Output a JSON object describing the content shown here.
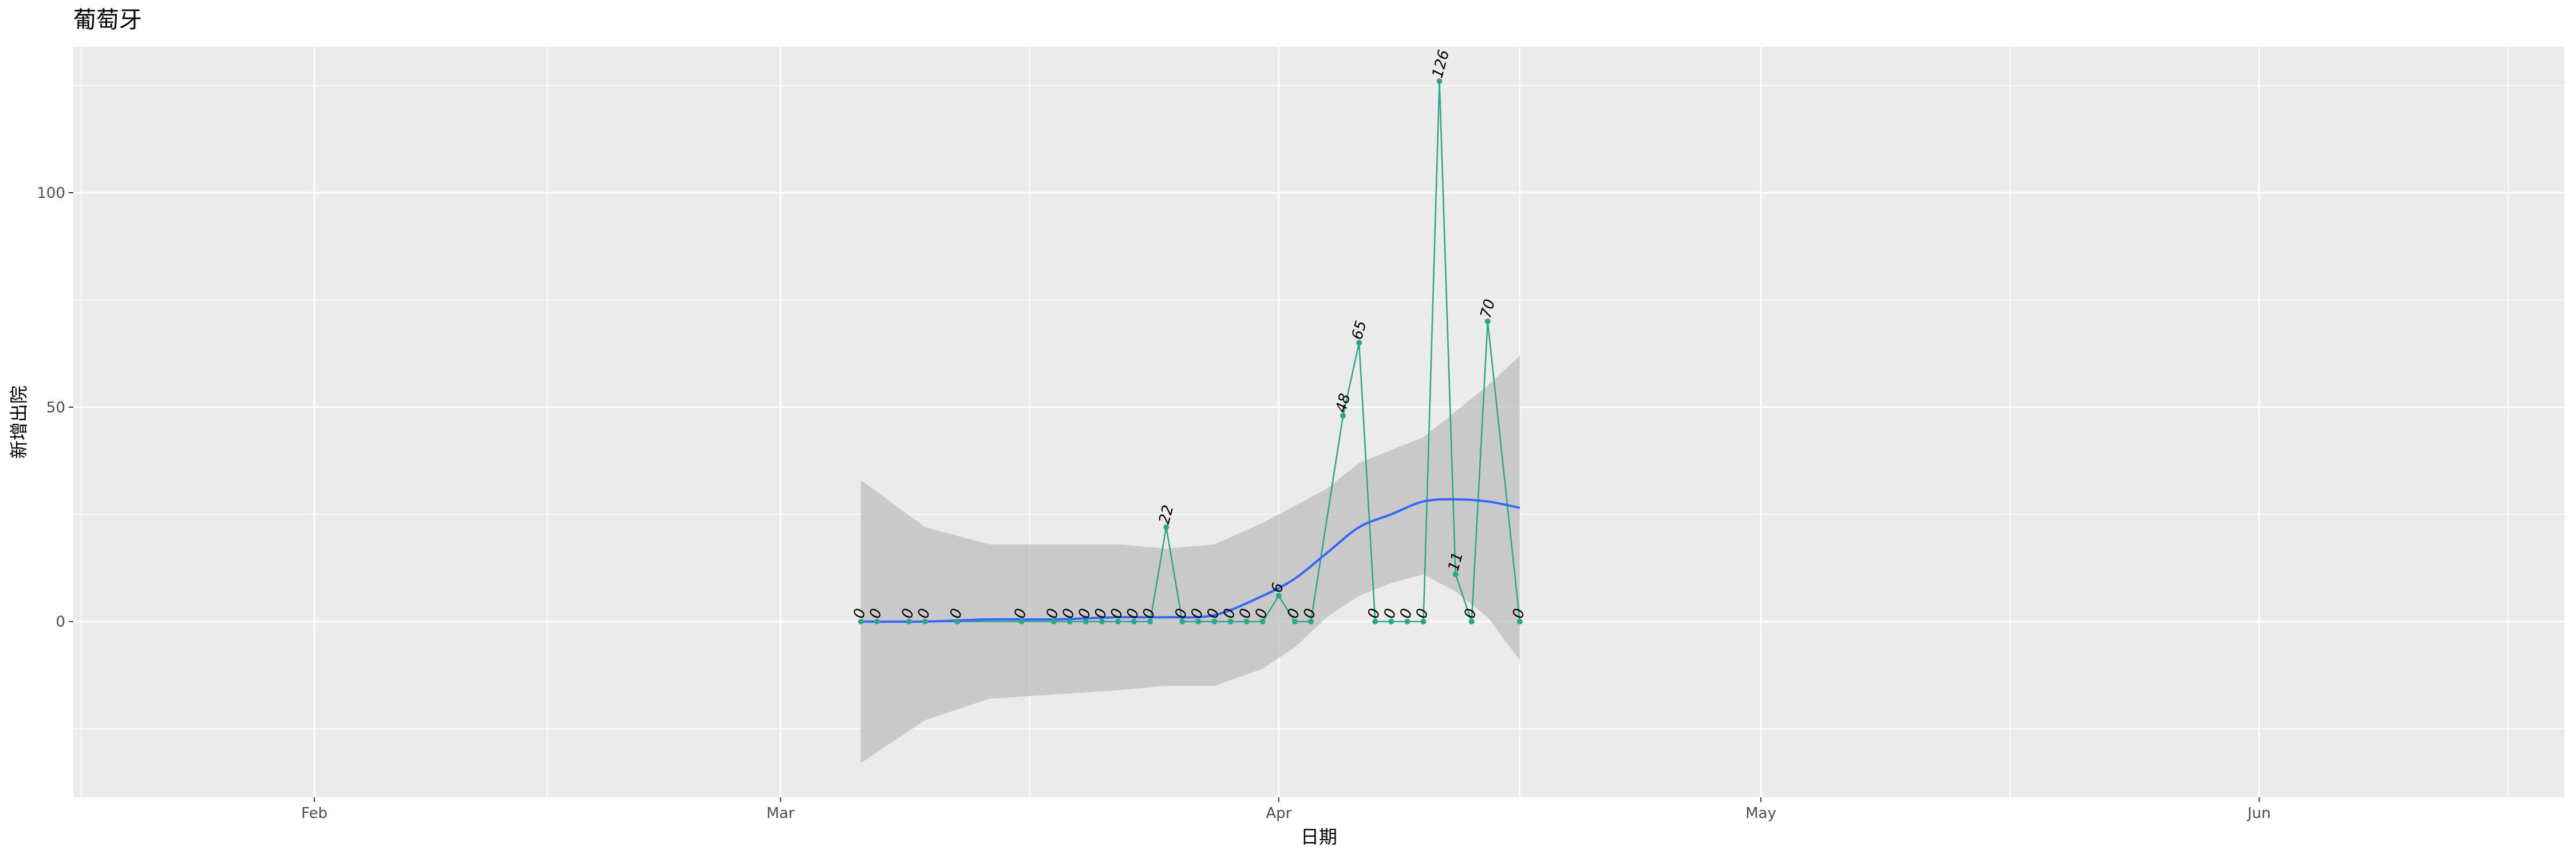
{
  "chart_data": {
    "type": "line",
    "title": "葡萄牙",
    "xlabel": "日期",
    "ylabel": "新增出院",
    "x_ticks": [
      {
        "date": "2020-02-01",
        "label": "Feb"
      },
      {
        "date": "2020-03-01",
        "label": "Mar"
      },
      {
        "date": "2020-04-01",
        "label": "Apr"
      },
      {
        "date": "2020-05-01",
        "label": "May"
      },
      {
        "date": "2020-06-01",
        "label": "Jun"
      }
    ],
    "y_ticks": [
      0,
      50,
      100
    ],
    "xlim": [
      "2020-01-17",
      "2020-06-20"
    ],
    "ylim": [
      -41,
      134
    ],
    "grid": true,
    "series": [
      {
        "color": "#2ca58d",
        "points": [
          {
            "x": "2020-03-06",
            "y": 0,
            "label": "0"
          },
          {
            "x": "2020-03-07",
            "y": 0,
            "label": "0"
          },
          {
            "x": "2020-03-09",
            "y": 0,
            "label": "0"
          },
          {
            "x": "2020-03-10",
            "y": 0,
            "label": "0"
          },
          {
            "x": "2020-03-12",
            "y": 0,
            "label": "0"
          },
          {
            "x": "2020-03-16",
            "y": 0,
            "label": "0"
          },
          {
            "x": "2020-03-18",
            "y": 0,
            "label": "0"
          },
          {
            "x": "2020-03-19",
            "y": 0,
            "label": "0"
          },
          {
            "x": "2020-03-20",
            "y": 0,
            "label": "0"
          },
          {
            "x": "2020-03-21",
            "y": 0,
            "label": "0"
          },
          {
            "x": "2020-03-22",
            "y": 0,
            "label": "0"
          },
          {
            "x": "2020-03-23",
            "y": 0,
            "label": "0"
          },
          {
            "x": "2020-03-24",
            "y": 0,
            "label": "0"
          },
          {
            "x": "2020-03-25",
            "y": 22,
            "label": "22"
          },
          {
            "x": "2020-03-26",
            "y": 0,
            "label": "0"
          },
          {
            "x": "2020-03-27",
            "y": 0,
            "label": "0"
          },
          {
            "x": "2020-03-28",
            "y": 0,
            "label": "0"
          },
          {
            "x": "2020-03-29",
            "y": 0,
            "label": "0"
          },
          {
            "x": "2020-03-30",
            "y": 0,
            "label": "0"
          },
          {
            "x": "2020-03-31",
            "y": 0,
            "label": "0"
          },
          {
            "x": "2020-04-01",
            "y": 6,
            "label": "6"
          },
          {
            "x": "2020-04-02",
            "y": 0,
            "label": "0"
          },
          {
            "x": "2020-04-03",
            "y": 0,
            "label": "0"
          },
          {
            "x": "2020-04-05",
            "y": 48,
            "label": "48"
          },
          {
            "x": "2020-04-06",
            "y": 65,
            "label": "65"
          },
          {
            "x": "2020-04-07",
            "y": 0,
            "label": "0"
          },
          {
            "x": "2020-04-08",
            "y": 0,
            "label": "0"
          },
          {
            "x": "2020-04-09",
            "y": 0,
            "label": "0"
          },
          {
            "x": "2020-04-10",
            "y": 0,
            "label": "0"
          },
          {
            "x": "2020-04-11",
            "y": 126,
            "label": "126"
          },
          {
            "x": "2020-04-12",
            "y": 11,
            "label": "11"
          },
          {
            "x": "2020-04-13",
            "y": 0,
            "label": "0"
          },
          {
            "x": "2020-04-14",
            "y": 70,
            "label": "70"
          },
          {
            "x": "2020-04-16",
            "y": 0,
            "label": "0"
          }
        ]
      }
    ],
    "smooth": {
      "color": "#3366ff",
      "band_color": "#bdbdbd",
      "points": [
        {
          "x": "2020-03-06",
          "y": 0,
          "lo": -33,
          "hi": 33
        },
        {
          "x": "2020-03-10",
          "y": 0,
          "lo": -23,
          "hi": 22
        },
        {
          "x": "2020-03-14",
          "y": 0.5,
          "lo": -18,
          "hi": 18
        },
        {
          "x": "2020-03-18",
          "y": 0.5,
          "lo": -17,
          "hi": 18
        },
        {
          "x": "2020-03-22",
          "y": 1,
          "lo": -16,
          "hi": 18
        },
        {
          "x": "2020-03-25",
          "y": 1,
          "lo": -15,
          "hi": 17
        },
        {
          "x": "2020-03-28",
          "y": 1.5,
          "lo": -15,
          "hi": 18
        },
        {
          "x": "2020-03-31",
          "y": 6,
          "lo": -11,
          "hi": 23
        },
        {
          "x": "2020-04-02",
          "y": 10,
          "lo": -6,
          "hi": 27
        },
        {
          "x": "2020-04-04",
          "y": 16,
          "lo": 1,
          "hi": 31
        },
        {
          "x": "2020-04-06",
          "y": 22,
          "lo": 6,
          "hi": 37
        },
        {
          "x": "2020-04-08",
          "y": 25,
          "lo": 9,
          "hi": 40
        },
        {
          "x": "2020-04-10",
          "y": 28,
          "lo": 11,
          "hi": 43
        },
        {
          "x": "2020-04-12",
          "y": 28.5,
          "lo": 7,
          "hi": 49
        },
        {
          "x": "2020-04-14",
          "y": 28,
          "lo": 1,
          "hi": 55
        },
        {
          "x": "2020-04-16",
          "y": 26.5,
          "lo": -9,
          "hi": 62
        }
      ]
    }
  }
}
